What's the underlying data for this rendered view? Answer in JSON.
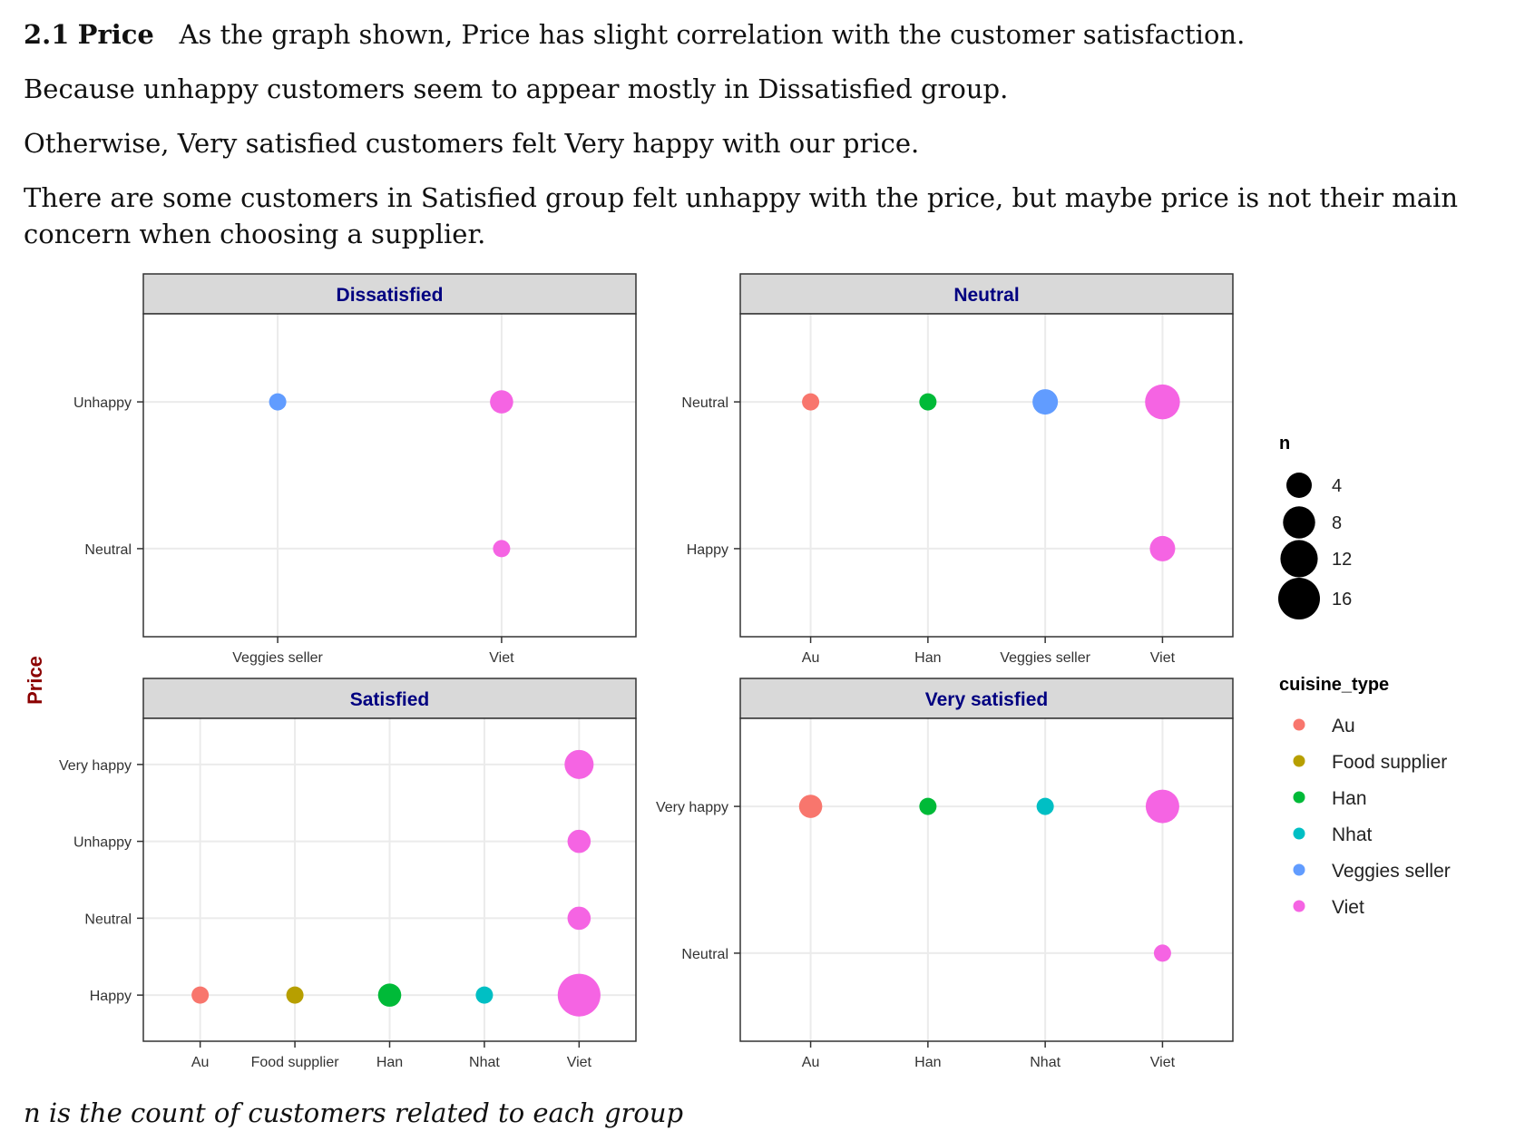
{
  "text": {
    "heading_number": "2.1",
    "heading_title": "Price",
    "paragraphs": [
      "As the graph shown, Price has slight correlation with the customer satisfaction.",
      "Because unhappy customers seem to appear mostly in Dissatisfied group.",
      "Otherwise, Very satisfied customers felt Very happy with our price.",
      "There are some customers in Satisfied group felt unhappy with the price, but maybe price is not their main concern when choosing a supplier."
    ],
    "footnote": "n is the count of customers related to each group"
  },
  "colors": {
    "Au": "#F8766D",
    "Food supplier": "#B79F00",
    "Han": "#00BA38",
    "Nhat": "#00BFC4",
    "Veggies seller": "#619CFF",
    "Viet": "#F564E3",
    "strip_bg": "#D9D9D9",
    "strip_text": "#000080",
    "ylabel": "#8B0000"
  },
  "chart_data": {
    "type": "scatter",
    "ylabel": "Price",
    "size_legend": {
      "title": "n",
      "values": [
        4,
        8,
        12,
        16
      ]
    },
    "color_legend": {
      "title": "cuisine_type",
      "entries": [
        "Au",
        "Food supplier",
        "Han",
        "Nhat",
        "Veggies seller",
        "Viet"
      ]
    },
    "panels": [
      {
        "title": "Dissatisfied",
        "x_categories": [
          "Veggies seller",
          "Viet"
        ],
        "y_categories": [
          "Neutral",
          "Unhappy"
        ],
        "points": [
          {
            "x": "Veggies seller",
            "y": "Unhappy",
            "n": 1
          },
          {
            "x": "Viet",
            "y": "Unhappy",
            "n": 3
          },
          {
            "x": "Viet",
            "y": "Neutral",
            "n": 1
          }
        ]
      },
      {
        "title": "Neutral",
        "x_categories": [
          "Au",
          "Han",
          "Veggies seller",
          "Viet"
        ],
        "y_categories": [
          "Happy",
          "Neutral"
        ],
        "points": [
          {
            "x": "Au",
            "y": "Neutral",
            "n": 1
          },
          {
            "x": "Han",
            "y": "Neutral",
            "n": 1
          },
          {
            "x": "Veggies seller",
            "y": "Neutral",
            "n": 4
          },
          {
            "x": "Viet",
            "y": "Neutral",
            "n": 10
          },
          {
            "x": "Viet",
            "y": "Happy",
            "n": 4
          }
        ]
      },
      {
        "title": "Satisfied",
        "x_categories": [
          "Au",
          "Food supplier",
          "Han",
          "Nhat",
          "Viet"
        ],
        "y_categories": [
          "Happy",
          "Neutral",
          "Unhappy",
          "Very happy"
        ],
        "points": [
          {
            "x": "Viet",
            "y": "Very happy",
            "n": 6
          },
          {
            "x": "Viet",
            "y": "Unhappy",
            "n": 3
          },
          {
            "x": "Viet",
            "y": "Neutral",
            "n": 3
          },
          {
            "x": "Au",
            "y": "Happy",
            "n": 1
          },
          {
            "x": "Food supplier",
            "y": "Happy",
            "n": 1
          },
          {
            "x": "Han",
            "y": "Happy",
            "n": 3
          },
          {
            "x": "Nhat",
            "y": "Happy",
            "n": 1
          },
          {
            "x": "Viet",
            "y": "Happy",
            "n": 17
          }
        ]
      },
      {
        "title": "Very satisfied",
        "x_categories": [
          "Au",
          "Han",
          "Nhat",
          "Viet"
        ],
        "y_categories": [
          "Neutral",
          "Very happy"
        ],
        "points": [
          {
            "x": "Au",
            "y": "Very happy",
            "n": 3
          },
          {
            "x": "Han",
            "y": "Very happy",
            "n": 1
          },
          {
            "x": "Nhat",
            "y": "Very happy",
            "n": 1
          },
          {
            "x": "Viet",
            "y": "Very happy",
            "n": 9
          },
          {
            "x": "Viet",
            "y": "Neutral",
            "n": 1
          }
        ]
      }
    ]
  }
}
